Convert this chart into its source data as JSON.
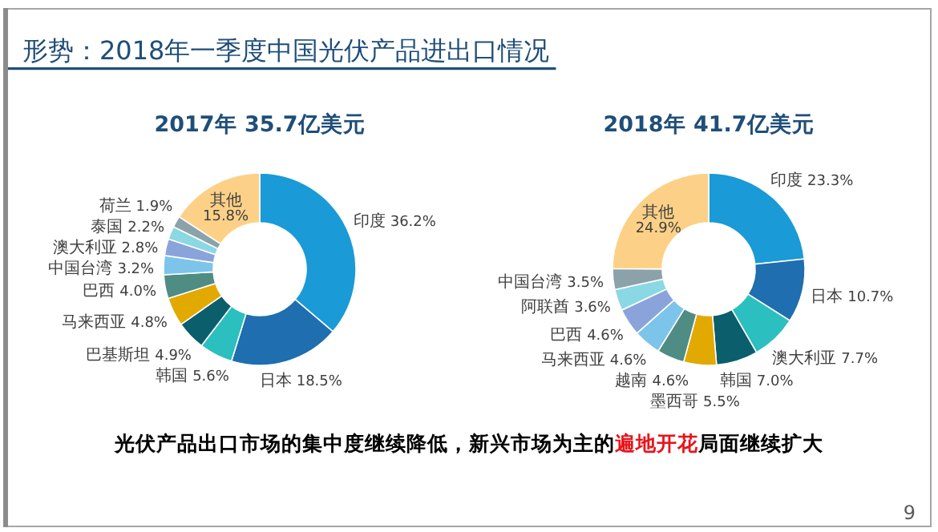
{
  "chart_data": [
    {
      "type": "other",
      "title": "形势：2018年一季度中国光伏产品进出口情况"
    },
    {
      "type": "donut",
      "title": "2017年 35.7亿美元",
      "categories": [
        "印度",
        "日本",
        "韩国",
        "巴基斯坦",
        "马来西亚",
        "巴西",
        "中国台湾",
        "澳大利亚",
        "泰国",
        "荷兰",
        "其他"
      ],
      "values": [
        36.2,
        18.5,
        5.6,
        4.9,
        4.8,
        4.0,
        3.2,
        2.8,
        2.2,
        1.9,
        15.8
      ],
      "value_labels": [
        "36.2%",
        "18.5%",
        "5.6%",
        "4.9%",
        "4.8%",
        "4.0%",
        "3.2%",
        "2.8%",
        "2.2%",
        "1.9%",
        "15.8%"
      ],
      "colors": [
        "#1a9ad6",
        "#1e6eb0",
        "#2bbfbf",
        "#0b5e6c",
        "#e2a900",
        "#4e8c84",
        "#7dc4ea",
        "#8aa4db",
        "#8ad8e4",
        "#8ca2ab",
        "#fcd187"
      ]
    },
    {
      "type": "donut",
      "title": "2018年 41.7亿美元",
      "categories": [
        "印度",
        "日本",
        "澳大利亚",
        "韩国",
        "墨西哥",
        "越南",
        "马来西亚",
        "巴西",
        "阿联酋",
        "中国台湾",
        "其他"
      ],
      "values": [
        23.3,
        10.7,
        7.7,
        7.0,
        5.5,
        4.6,
        4.6,
        4.6,
        3.6,
        3.5,
        24.9
      ],
      "value_labels": [
        "23.3%",
        "10.7%",
        "7.7%",
        "7.0%",
        "5.5%",
        "4.6%",
        "4.6%",
        "4.6%",
        "3.6%",
        "3.5%",
        "24.9%"
      ],
      "colors": [
        "#1a9ad6",
        "#1e6eb0",
        "#2bbfbf",
        "#0b5e6c",
        "#e2a900",
        "#4e8c84",
        "#7dc4ea",
        "#8aa4db",
        "#8ad8e4",
        "#8ca2ab",
        "#fcd187"
      ]
    },
    {
      "type": "other",
      "annotations": [
        "光伏产品出口市场的集中度继续降低，新兴市场为主的",
        "遍地开花",
        "局面继续扩大",
        "9"
      ]
    }
  ]
}
